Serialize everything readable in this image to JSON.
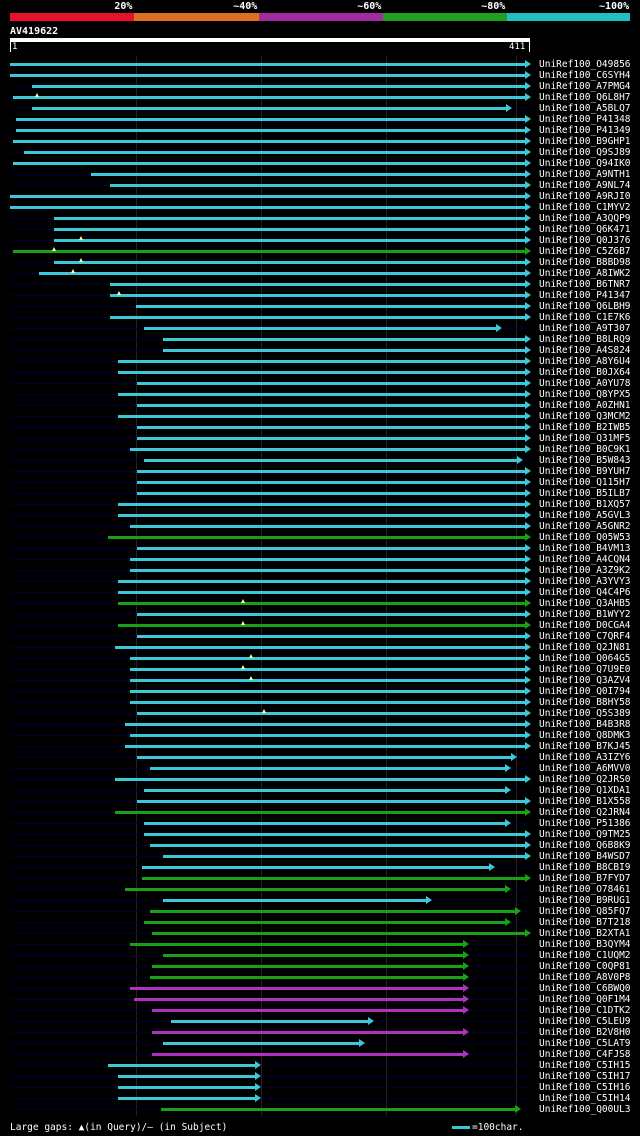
{
  "scale": {
    "labels": [
      "20%",
      "~40%",
      "~60%",
      "~80%",
      "~100%"
    ],
    "colors": [
      "#e8102c",
      "#e07020",
      "#a02ca0",
      "#20a020",
      "#20c0c0"
    ]
  },
  "query": {
    "title": "AV419622",
    "start": "1",
    "end": "411"
  },
  "hits": [
    {
      "name": "UniRef100_O49856",
      "s": 1,
      "e": 411,
      "c": "cyan",
      "gaps": []
    },
    {
      "name": "UniRef100_C6SYH4",
      "s": 1,
      "e": 411,
      "c": "cyan",
      "gaps": []
    },
    {
      "name": "UniRef100_A7PMG4",
      "s": 18,
      "e": 411,
      "c": "cyan",
      "gaps": []
    },
    {
      "name": "UniRef100_Q6L8H7",
      "s": 3,
      "e": 411,
      "c": "cyan",
      "gaps": [
        22
      ]
    },
    {
      "name": "UniRef100_A5BLQ7",
      "s": 18,
      "e": 396,
      "c": "cyan",
      "gaps": []
    },
    {
      "name": "UniRef100_P41348",
      "s": 6,
      "e": 411,
      "c": "cyan",
      "gaps": []
    },
    {
      "name": "UniRef100_P41349",
      "s": 6,
      "e": 411,
      "c": "cyan",
      "gaps": []
    },
    {
      "name": "UniRef100_B9GHP1",
      "s": 3,
      "e": 411,
      "c": "cyan",
      "gaps": []
    },
    {
      "name": "UniRef100_Q9SJ89",
      "s": 12,
      "e": 411,
      "c": "cyan",
      "gaps": []
    },
    {
      "name": "UniRef100_Q94IK0",
      "s": 3,
      "e": 411,
      "c": "cyan",
      "gaps": []
    },
    {
      "name": "UniRef100_A9NTH1",
      "s": 65,
      "e": 411,
      "c": "cyan",
      "gaps": []
    },
    {
      "name": "UniRef100_A9NL74",
      "s": 80,
      "e": 411,
      "c": "cyan",
      "gaps": []
    },
    {
      "name": "UniRef100_A9RJI0",
      "s": 1,
      "e": 411,
      "c": "cyan",
      "gaps": []
    },
    {
      "name": "UniRef100_C1MYV2",
      "s": 1,
      "e": 411,
      "c": "cyan",
      "gaps": []
    },
    {
      "name": "UniRef100_A3QQP9",
      "s": 36,
      "e": 411,
      "c": "cyan",
      "gaps": []
    },
    {
      "name": "UniRef100_Q6K471",
      "s": 36,
      "e": 411,
      "c": "cyan",
      "gaps": []
    },
    {
      "name": "UniRef100_Q0J376",
      "s": 36,
      "e": 411,
      "c": "cyan",
      "gaps": [
        57
      ]
    },
    {
      "name": "UniRef100_C5Z6B7",
      "s": 3,
      "e": 411,
      "c": "green",
      "gaps": [
        36
      ]
    },
    {
      "name": "UniRef100_B8BD98",
      "s": 36,
      "e": 411,
      "c": "cyan",
      "gaps": [
        57
      ]
    },
    {
      "name": "UniRef100_A8IWK2",
      "s": 24,
      "e": 411,
      "c": "cyan",
      "gaps": [
        51
      ]
    },
    {
      "name": "UniRef100_B6TNR7",
      "s": 80,
      "e": 411,
      "c": "cyan",
      "gaps": []
    },
    {
      "name": "UniRef100_P41347",
      "s": 80,
      "e": 411,
      "c": "cyan",
      "gaps": [
        87
      ]
    },
    {
      "name": "UniRef100_Q6LBH9",
      "s": 100,
      "e": 411,
      "c": "cyan",
      "gaps": []
    },
    {
      "name": "UniRef100_C1E7K6",
      "s": 80,
      "e": 411,
      "c": "cyan",
      "gaps": []
    },
    {
      "name": "UniRef100_A9T307",
      "s": 107,
      "e": 388,
      "c": "cyan",
      "gaps": []
    },
    {
      "name": "UniRef100_B8LRQ9",
      "s": 122,
      "e": 411,
      "c": "cyan",
      "gaps": []
    },
    {
      "name": "UniRef100_A4S824",
      "s": 122,
      "e": 411,
      "c": "cyan",
      "gaps": []
    },
    {
      "name": "UniRef100_A8Y6U4",
      "s": 86,
      "e": 411,
      "c": "cyan",
      "gaps": []
    },
    {
      "name": "UniRef100_B0JX64",
      "s": 86,
      "e": 411,
      "c": "cyan",
      "gaps": []
    },
    {
      "name": "UniRef100_A0YU78",
      "s": 101,
      "e": 411,
      "c": "cyan",
      "gaps": []
    },
    {
      "name": "UniRef100_Q8YPX5",
      "s": 86,
      "e": 411,
      "c": "cyan",
      "gaps": []
    },
    {
      "name": "UniRef100_A0ZHN1",
      "s": 101,
      "e": 411,
      "c": "cyan",
      "gaps": []
    },
    {
      "name": "UniRef100_Q3MCM2",
      "s": 86,
      "e": 411,
      "c": "cyan",
      "gaps": []
    },
    {
      "name": "UniRef100_B2IWB5",
      "s": 101,
      "e": 411,
      "c": "cyan",
      "gaps": []
    },
    {
      "name": "UniRef100_Q31MF5",
      "s": 101,
      "e": 411,
      "c": "cyan",
      "gaps": []
    },
    {
      "name": "UniRef100_B0C9K1",
      "s": 96,
      "e": 411,
      "c": "cyan",
      "gaps": []
    },
    {
      "name": "UniRef100_B5W843",
      "s": 107,
      "e": 405,
      "c": "cyan",
      "gaps": []
    },
    {
      "name": "UniRef100_B9YUH7",
      "s": 101,
      "e": 411,
      "c": "cyan",
      "gaps": []
    },
    {
      "name": "UniRef100_Q115H7",
      "s": 101,
      "e": 411,
      "c": "cyan",
      "gaps": []
    },
    {
      "name": "UniRef100_B5ILB7",
      "s": 101,
      "e": 411,
      "c": "cyan",
      "gaps": []
    },
    {
      "name": "UniRef100_B1XQ57",
      "s": 86,
      "e": 411,
      "c": "cyan",
      "gaps": []
    },
    {
      "name": "UniRef100_A5GVL3",
      "s": 86,
      "e": 411,
      "c": "cyan",
      "gaps": []
    },
    {
      "name": "UniRef100_A5GNR2",
      "s": 96,
      "e": 411,
      "c": "cyan",
      "gaps": []
    },
    {
      "name": "UniRef100_Q05W53",
      "s": 78,
      "e": 411,
      "c": "green",
      "gaps": []
    },
    {
      "name": "UniRef100_B4VM13",
      "s": 101,
      "e": 411,
      "c": "cyan",
      "gaps": []
    },
    {
      "name": "UniRef100_A4CQN4",
      "s": 96,
      "e": 411,
      "c": "cyan",
      "gaps": []
    },
    {
      "name": "UniRef100_A3Z9K2",
      "s": 96,
      "e": 411,
      "c": "cyan",
      "gaps": []
    },
    {
      "name": "UniRef100_A3YVY3",
      "s": 86,
      "e": 411,
      "c": "cyan",
      "gaps": []
    },
    {
      "name": "UniRef100_Q4C4P6",
      "s": 86,
      "e": 411,
      "c": "cyan",
      "gaps": []
    },
    {
      "name": "UniRef100_Q3AHB5",
      "s": 86,
      "e": 411,
      "c": "green",
      "gaps": [
        185
      ]
    },
    {
      "name": "UniRef100_B1WYY2",
      "s": 101,
      "e": 411,
      "c": "cyan",
      "gaps": []
    },
    {
      "name": "UniRef100_D0CGA4",
      "s": 86,
      "e": 411,
      "c": "green",
      "gaps": [
        185
      ]
    },
    {
      "name": "UniRef100_C7QRF4",
      "s": 101,
      "e": 411,
      "c": "cyan",
      "gaps": []
    },
    {
      "name": "UniRef100_Q2JN81",
      "s": 84,
      "e": 411,
      "c": "cyan",
      "gaps": []
    },
    {
      "name": "UniRef100_Q064G5",
      "s": 96,
      "e": 411,
      "c": "cyan",
      "gaps": [
        191
      ]
    },
    {
      "name": "UniRef100_Q7U9E0",
      "s": 96,
      "e": 411,
      "c": "cyan",
      "gaps": [
        185
      ]
    },
    {
      "name": "UniRef100_Q3AZV4",
      "s": 96,
      "e": 411,
      "c": "cyan",
      "gaps": [
        191
      ]
    },
    {
      "name": "UniRef100_Q0I794",
      "s": 96,
      "e": 411,
      "c": "cyan",
      "gaps": []
    },
    {
      "name": "UniRef100_B8HY58",
      "s": 96,
      "e": 411,
      "c": "cyan",
      "gaps": []
    },
    {
      "name": "UniRef100_Q5S389",
      "s": 101,
      "e": 411,
      "c": "cyan",
      "gaps": [
        201
      ]
    },
    {
      "name": "UniRef100_B4B3R8",
      "s": 92,
      "e": 411,
      "c": "cyan",
      "gaps": []
    },
    {
      "name": "UniRef100_Q8DMK3",
      "s": 96,
      "e": 411,
      "c": "cyan",
      "gaps": []
    },
    {
      "name": "UniRef100_B7KJ45",
      "s": 92,
      "e": 411,
      "c": "cyan",
      "gaps": []
    },
    {
      "name": "UniRef100_A3IZY6",
      "s": 101,
      "e": 400,
      "c": "cyan",
      "gaps": []
    },
    {
      "name": "UniRef100_A6MVV0",
      "s": 111,
      "e": 395,
      "c": "cyan",
      "gaps": []
    },
    {
      "name": "UniRef100_Q2JRS0",
      "s": 84,
      "e": 411,
      "c": "cyan",
      "gaps": []
    },
    {
      "name": "UniRef100_Q1XDA1",
      "s": 107,
      "e": 395,
      "c": "cyan",
      "gaps": []
    },
    {
      "name": "UniRef100_B1X558",
      "s": 101,
      "e": 411,
      "c": "cyan",
      "gaps": []
    },
    {
      "name": "UniRef100_Q2JRN4",
      "s": 84,
      "e": 411,
      "c": "green",
      "gaps": []
    },
    {
      "name": "UniRef100_P51386",
      "s": 107,
      "e": 395,
      "c": "cyan",
      "gaps": []
    },
    {
      "name": "UniRef100_Q9TM25",
      "s": 107,
      "e": 411,
      "c": "cyan",
      "gaps": []
    },
    {
      "name": "UniRef100_Q6B8K9",
      "s": 111,
      "e": 411,
      "c": "cyan",
      "gaps": []
    },
    {
      "name": "UniRef100_B4WSD7",
      "s": 122,
      "e": 411,
      "c": "cyan",
      "gaps": []
    },
    {
      "name": "UniRef100_B8CBI9",
      "s": 105,
      "e": 383,
      "c": "cyan",
      "gaps": []
    },
    {
      "name": "UniRef100_B7FYD7",
      "s": 105,
      "e": 411,
      "c": "green",
      "gaps": []
    },
    {
      "name": "UniRef100_O78461",
      "s": 92,
      "e": 395,
      "c": "green",
      "gaps": []
    },
    {
      "name": "UniRef100_B9RUG1",
      "s": 122,
      "e": 333,
      "c": "cyan",
      "gaps": []
    },
    {
      "name": "UniRef100_Q85FQ7",
      "s": 111,
      "e": 403,
      "c": "green",
      "gaps": []
    },
    {
      "name": "UniRef100_B7T218",
      "s": 107,
      "e": 395,
      "c": "green",
      "gaps": []
    },
    {
      "name": "UniRef100_B2XTA1",
      "s": 113,
      "e": 411,
      "c": "green",
      "gaps": []
    },
    {
      "name": "UniRef100_B3QYM4",
      "s": 96,
      "e": 362,
      "c": "green",
      "gaps": []
    },
    {
      "name": "UniRef100_C1UQM2",
      "s": 122,
      "e": 362,
      "c": "green",
      "gaps": []
    },
    {
      "name": "UniRef100_C0QP81",
      "s": 113,
      "e": 362,
      "c": "green",
      "gaps": []
    },
    {
      "name": "UniRef100_A8V0P8",
      "s": 111,
      "e": 362,
      "c": "green",
      "gaps": []
    },
    {
      "name": "UniRef100_C6BWQ0",
      "s": 96,
      "e": 362,
      "c": "magenta",
      "gaps": []
    },
    {
      "name": "UniRef100_Q0F1M4",
      "s": 99,
      "e": 362,
      "c": "magenta",
      "gaps": []
    },
    {
      "name": "UniRef100_C1DTK2",
      "s": 113,
      "e": 362,
      "c": "magenta",
      "gaps": []
    },
    {
      "name": "UniRef100_C5LEU9",
      "s": 128,
      "e": 287,
      "c": "cyan",
      "gaps": []
    },
    {
      "name": "UniRef100_B2V8H0",
      "s": 113,
      "e": 362,
      "c": "magenta",
      "gaps": []
    },
    {
      "name": "UniRef100_C5LAT9",
      "s": 122,
      "e": 280,
      "c": "cyan",
      "gaps": []
    },
    {
      "name": "UniRef100_C4FJS8",
      "s": 113,
      "e": 362,
      "c": "magenta",
      "gaps": []
    },
    {
      "name": "UniRef100_C5IH15",
      "s": 78,
      "e": 198,
      "c": "cyan",
      "gaps": []
    },
    {
      "name": "UniRef100_C5IH17",
      "s": 86,
      "e": 198,
      "c": "cyan",
      "gaps": []
    },
    {
      "name": "UniRef100_C5IH16",
      "s": 86,
      "e": 198,
      "c": "cyan",
      "gaps": []
    },
    {
      "name": "UniRef100_C5IH14",
      "s": 86,
      "e": 198,
      "c": "cyan",
      "gaps": []
    },
    {
      "name": "UniRef100_Q00UL3",
      "s": 120,
      "e": 403,
      "c": "green",
      "gaps": []
    }
  ],
  "footer": {
    "legend": "Large gaps: ▲(in Query)/– (in Subject)",
    "key": "=100char."
  }
}
